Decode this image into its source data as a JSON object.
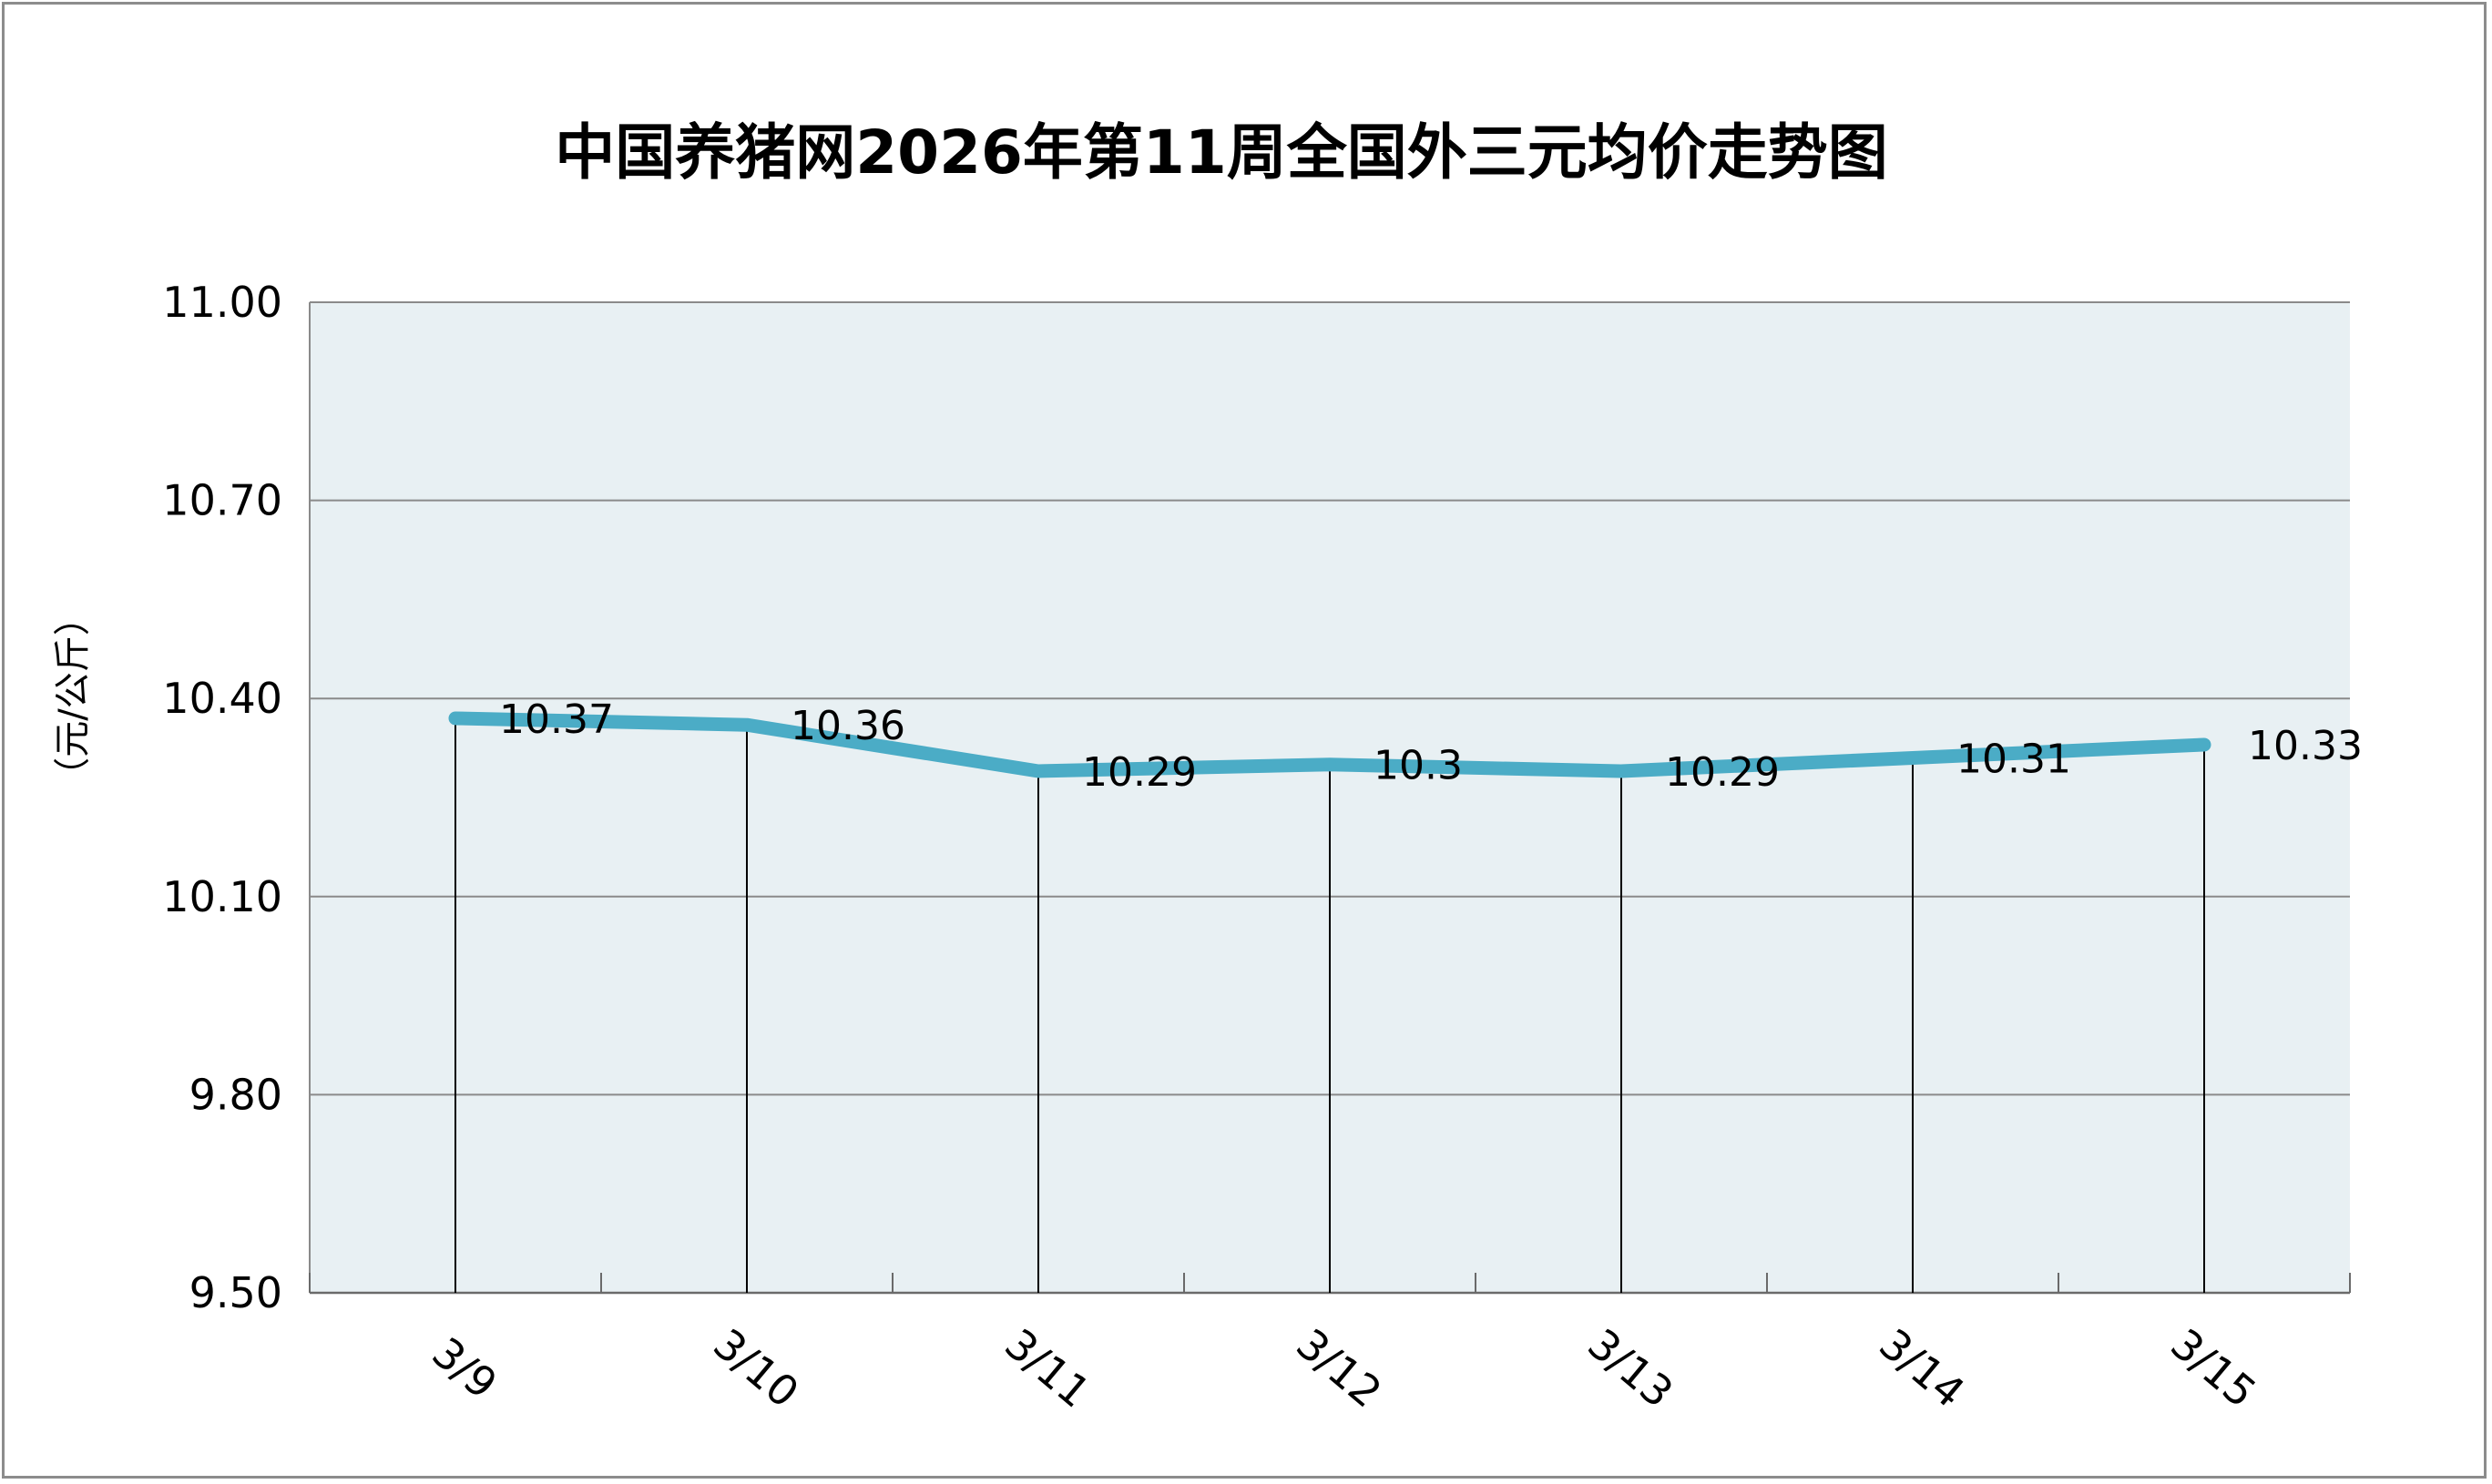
{
  "chart_data": {
    "type": "line",
    "title": "中国养猪网2026年第11周全国外三元均价走势图",
    "ylabel": "（元/公斤）",
    "xlabel": "",
    "categories": [
      "3/9",
      "3/10",
      "3/11",
      "3/12",
      "3/13",
      "3/14",
      "3/15"
    ],
    "series": [
      {
        "values": [
          10.37,
          10.36,
          10.29,
          10.3,
          10.29,
          10.31,
          10.33
        ],
        "labels": [
          "10.37",
          "10.36",
          "10.29",
          "10.3",
          "10.29",
          "10.31",
          "10.33"
        ],
        "color": "#4BACC6"
      }
    ],
    "ylim": [
      9.5,
      11.0
    ],
    "yticks": [
      "9.50",
      "9.80",
      "10.10",
      "10.40",
      "10.70",
      "11.00"
    ],
    "grid": true,
    "plot_background": "#E8F0F3",
    "legend": "none"
  }
}
